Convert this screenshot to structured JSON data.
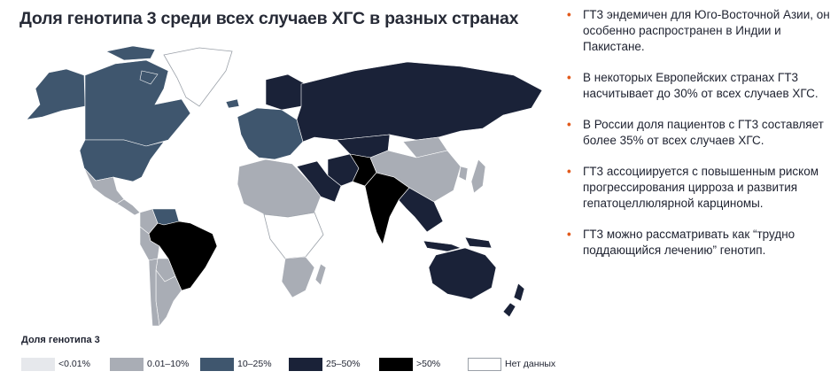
{
  "title": "Доля генотипа 3 среди всех случаев ХГС в разных странах",
  "bullets": [
    "ГТ3 эндемичен для Юго-Восточной Азии, он особенно распространен в Индии и Пакистане.",
    "В некоторых Европейских странах ГТ3 насчитывает до 30% от всех случаев ХГС.",
    "В России доля пациентов с ГТ3 составляет более 35% от всех случаев ХГС.",
    "ГТ3 ассоциируется с повышенным риском прогрессирования цирроза и развития гепатоцеллюлярной карциномы.",
    "ГТ3 можно рассматривать как “трудно поддающийся лечению” генотип."
  ],
  "legend": {
    "title": "Доля генотипа 3",
    "items": [
      {
        "label": "<0.01%",
        "color": "#e6e8ec"
      },
      {
        "label": "0.01–10%",
        "color": "#a9adb5"
      },
      {
        "label": "10–25%",
        "color": "#3f566e"
      },
      {
        "label": "25–50%",
        "color": "#1a2238"
      },
      {
        "label": ">50%",
        "color": "#000000"
      },
      {
        "label": "Нет данных",
        "color": "#ffffff"
      }
    ]
  },
  "regions": [
    {
      "name": "Canada",
      "class": "10–25%"
    },
    {
      "name": "USA",
      "class": "10–25%"
    },
    {
      "name": "Alaska",
      "class": "10–25%"
    },
    {
      "name": "Greenland",
      "class": "Нет данных"
    },
    {
      "name": "Mexico",
      "class": "0.01–10%"
    },
    {
      "name": "Central America",
      "class": "0.01–10%"
    },
    {
      "name": "Colombia",
      "class": "0.01–10%"
    },
    {
      "name": "Venezuela",
      "class": "10–25%"
    },
    {
      "name": "Brazil",
      "class": ">50%"
    },
    {
      "name": "Peru",
      "class": "0.01–10%"
    },
    {
      "name": "Bolivia",
      "class": "0.01–10%"
    },
    {
      "name": "Argentina",
      "class": "0.01–10%"
    },
    {
      "name": "Chile",
      "class": "0.01–10%"
    },
    {
      "name": "Europe",
      "class": "10–25%"
    },
    {
      "name": "Scandinavia",
      "class": "25–50%"
    },
    {
      "name": "Russia",
      "class": "25–50%"
    },
    {
      "name": "Kazakhstan",
      "class": "25–50%"
    },
    {
      "name": "Middle East",
      "class": "25–50%"
    },
    {
      "name": "Iran",
      "class": "25–50%"
    },
    {
      "name": "Pakistan",
      "class": ">50%"
    },
    {
      "name": "India",
      "class": ">50%"
    },
    {
      "name": "Mongolia",
      "class": "0.01–10%"
    },
    {
      "name": "China",
      "class": "0.01–10%"
    },
    {
      "name": "Southeast Asia",
      "class": "25–50%"
    },
    {
      "name": "Indonesia",
      "class": "25–50%"
    },
    {
      "name": "Japan",
      "class": "0.01–10%"
    },
    {
      "name": "North Africa",
      "class": "0.01–10%"
    },
    {
      "name": "Central Africa",
      "class": "Нет данных"
    },
    {
      "name": "Southern Africa",
      "class": "0.01–10%"
    },
    {
      "name": "Australia",
      "class": "25–50%"
    },
    {
      "name": "New Zealand",
      "class": "25–50%"
    }
  ]
}
